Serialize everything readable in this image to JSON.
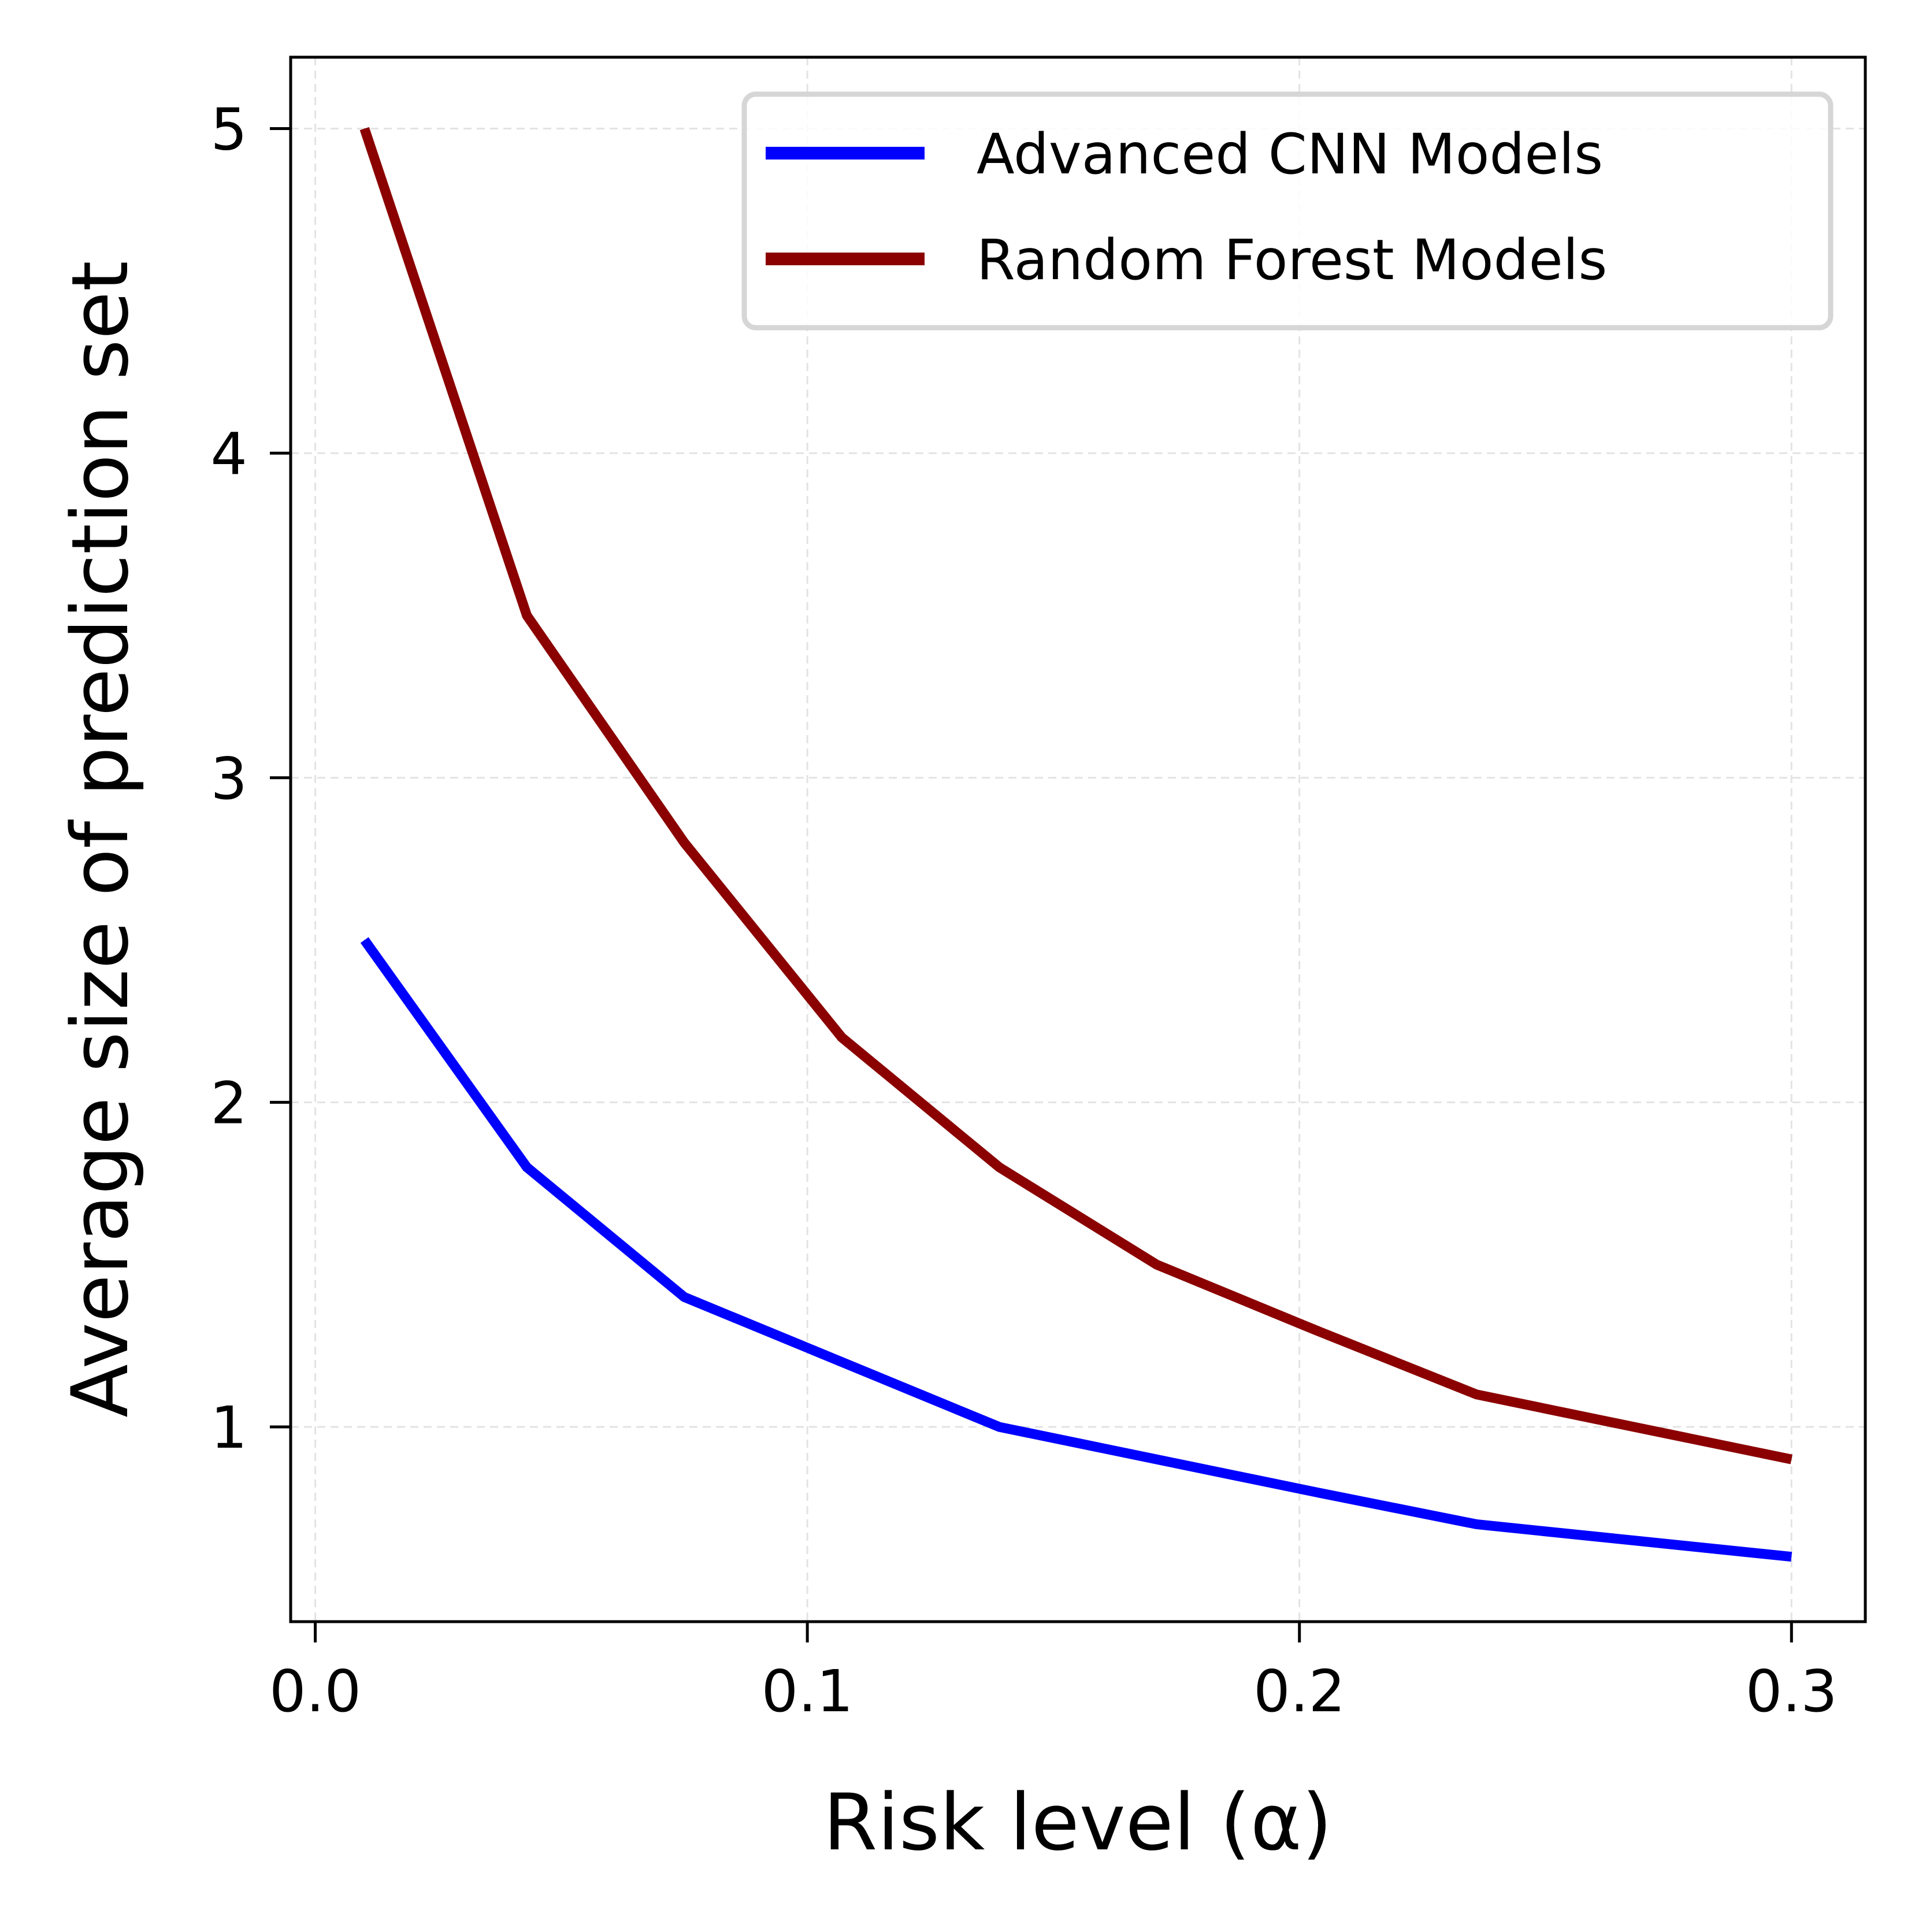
{
  "chart_data": {
    "type": "line",
    "title": "",
    "xlabel": "Risk level (α)",
    "ylabel": "Average size of prediction set",
    "xlim": [
      -0.005,
      0.315
    ],
    "ylim": [
      0.4,
      5.22
    ],
    "xticks": [
      {
        "value": 0.0,
        "label": "0.0"
      },
      {
        "value": 0.1,
        "label": "0.1"
      },
      {
        "value": 0.2,
        "label": "0.2"
      },
      {
        "value": 0.3,
        "label": "0.3"
      }
    ],
    "yticks": [
      {
        "value": 1,
        "label": "1"
      },
      {
        "value": 2,
        "label": "2"
      },
      {
        "value": 3,
        "label": "3"
      },
      {
        "value": 4,
        "label": "4"
      },
      {
        "value": 5,
        "label": "5"
      }
    ],
    "grid": true,
    "legend_position": "top-right",
    "x": [
      0.01,
      0.043,
      0.075,
      0.107,
      0.139,
      0.171,
      0.203,
      0.236,
      0.268,
      0.3
    ],
    "series": [
      {
        "name": "Advanced CNN Models",
        "color": "#0000ff",
        "values": [
          2.5,
          1.8,
          1.4,
          1.2,
          1.0,
          0.9,
          0.8,
          0.7,
          0.65,
          0.6
        ]
      },
      {
        "name": "Random Forest Models",
        "color": "#8b0000",
        "values": [
          5.0,
          3.5,
          2.8,
          2.2,
          1.8,
          1.5,
          1.3,
          1.1,
          1.0,
          0.9
        ]
      }
    ]
  }
}
